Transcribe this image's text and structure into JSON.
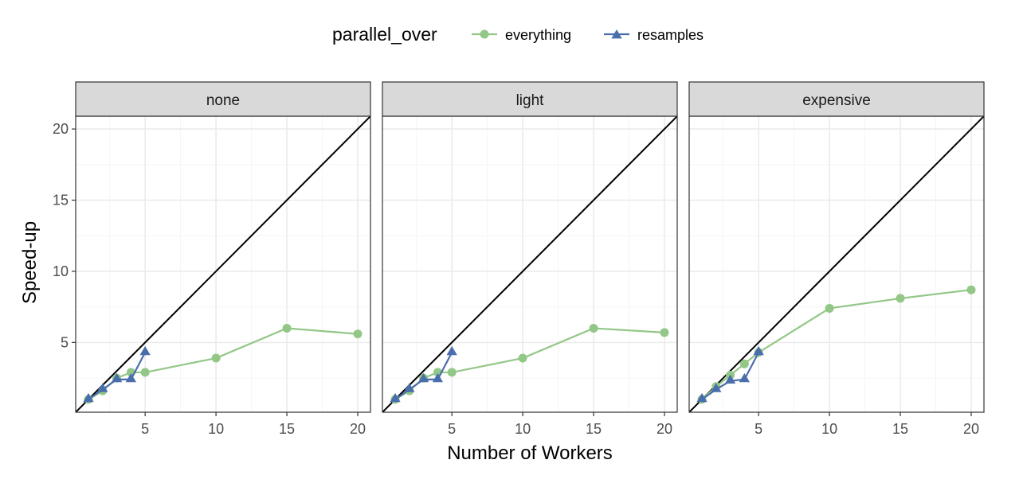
{
  "chart_data": {
    "type": "line",
    "legend": {
      "title": "parallel_over",
      "position": "top",
      "entries": [
        {
          "label": "everything",
          "series": "everything"
        },
        {
          "label": "resamples",
          "series": "resamples"
        }
      ]
    },
    "xlabel": "Number of Workers",
    "ylabel": "Speed-up",
    "xlim": [
      0.1,
      20.9
    ],
    "ylim": [
      0.1,
      20.9
    ],
    "x_ticks": [
      5,
      10,
      15,
      20
    ],
    "y_ticks": [
      5,
      10,
      15,
      20
    ],
    "reference_line": "y = x",
    "grid": true,
    "colors": {
      "everything": "#93c787",
      "resamples": "#4a6eac",
      "reference": "#000000",
      "strip_bg": "#d9d9d9",
      "grid_major": "#ebebeb",
      "grid_minor": "#f5f5f5"
    },
    "panels": [
      {
        "label": "none",
        "series": [
          {
            "name": "everything",
            "marker": "circle",
            "x": [
              1,
              2,
              3,
              4,
              5,
              10,
              15,
              20
            ],
            "y": [
              1.0,
              1.6,
              2.5,
              2.9,
              2.9,
              3.9,
              6.0,
              5.6
            ]
          },
          {
            "name": "resamples",
            "marker": "triangle",
            "x": [
              1,
              2,
              3,
              4,
              5
            ],
            "y": [
              1.0,
              1.7,
              2.4,
              2.4,
              4.3
            ]
          }
        ]
      },
      {
        "label": "light",
        "series": [
          {
            "name": "everything",
            "marker": "circle",
            "x": [
              1,
              2,
              3,
              4,
              5,
              10,
              15,
              20
            ],
            "y": [
              1.0,
              1.6,
              2.5,
              2.9,
              2.9,
              3.9,
              6.0,
              5.7
            ]
          },
          {
            "name": "resamples",
            "marker": "triangle",
            "x": [
              1,
              2,
              3,
              4,
              5
            ],
            "y": [
              1.0,
              1.7,
              2.4,
              2.4,
              4.3
            ]
          }
        ]
      },
      {
        "label": "expensive",
        "series": [
          {
            "name": "everything",
            "marker": "circle",
            "x": [
              1,
              2,
              3,
              4,
              5,
              10,
              15,
              20
            ],
            "y": [
              1.0,
              1.9,
              2.7,
              3.5,
              4.3,
              7.4,
              8.1,
              8.7
            ]
          },
          {
            "name": "resamples",
            "marker": "triangle",
            "x": [
              1,
              2,
              3,
              4,
              5
            ],
            "y": [
              1.0,
              1.7,
              2.3,
              2.4,
              4.3
            ]
          }
        ]
      }
    ]
  }
}
